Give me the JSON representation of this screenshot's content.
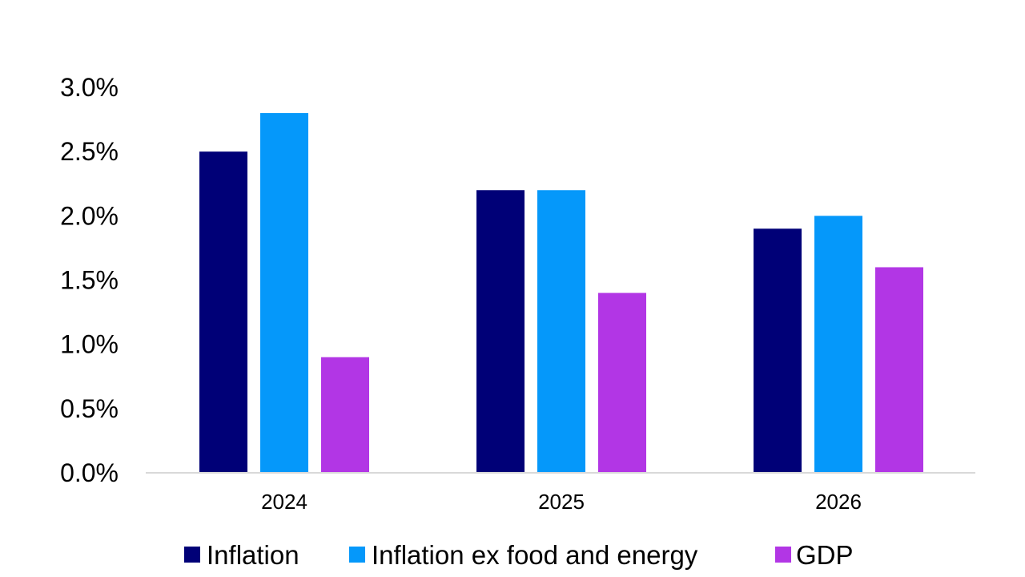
{
  "chart_data": {
    "type": "bar",
    "title": "",
    "xlabel": "",
    "ylabel": "",
    "categories": [
      "2024",
      "2025",
      "2026"
    ],
    "series": [
      {
        "name": "Inflation",
        "color": "#000077",
        "values": [
          2.5,
          2.2,
          1.9
        ]
      },
      {
        "name": "Inflation ex food and energy",
        "color": "#0598FA",
        "values": [
          2.8,
          2.2,
          2.0
        ]
      },
      {
        "name": "GDP",
        "color": "#B236E5",
        "values": [
          0.9,
          1.4,
          1.6
        ]
      }
    ],
    "ylim": [
      0,
      3.0
    ],
    "yticks": [
      0,
      0.5,
      1.0,
      1.5,
      2.0,
      2.5,
      3.0
    ],
    "ytick_labels": [
      "0.0%",
      "0.5%",
      "1.0%",
      "1.5%",
      "2.0%",
      "2.5%",
      "3.0%"
    ],
    "grid": false,
    "legend_position": "bottom"
  }
}
